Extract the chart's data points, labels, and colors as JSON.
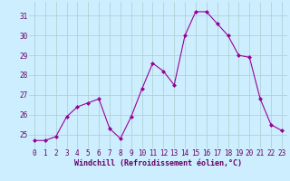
{
  "hours": [
    0,
    1,
    2,
    3,
    4,
    5,
    6,
    7,
    8,
    9,
    10,
    11,
    12,
    13,
    14,
    15,
    16,
    17,
    18,
    19,
    20,
    21,
    22,
    23
  ],
  "values": [
    24.7,
    24.7,
    24.9,
    25.9,
    26.4,
    26.6,
    26.8,
    25.3,
    24.8,
    25.9,
    27.3,
    28.6,
    28.2,
    27.5,
    30.0,
    31.2,
    31.2,
    30.6,
    30.0,
    29.0,
    28.9,
    26.8,
    25.5,
    25.2
  ],
  "line_color": "#990099",
  "marker": "D",
  "marker_size": 2.0,
  "bg_color": "#cceeff",
  "grid_color": "#aacccc",
  "xlabel": "Windchill (Refroidissement éolien,°C)",
  "xlabel_color": "#660066",
  "xlabel_fontsize": 6.0,
  "tick_color": "#660066",
  "tick_fontsize": 5.5,
  "ylim": [
    24.3,
    31.7
  ],
  "yticks": [
    25,
    26,
    27,
    28,
    29,
    30,
    31
  ],
  "xlim": [
    -0.5,
    23.5
  ],
  "xtick_labels": [
    "0",
    "1",
    "2",
    "3",
    "4",
    "5",
    "6",
    "7",
    "8",
    "9",
    "10",
    "11",
    "12",
    "13",
    "14",
    "15",
    "16",
    "17",
    "18",
    "19",
    "20",
    "21",
    "22",
    "23"
  ]
}
